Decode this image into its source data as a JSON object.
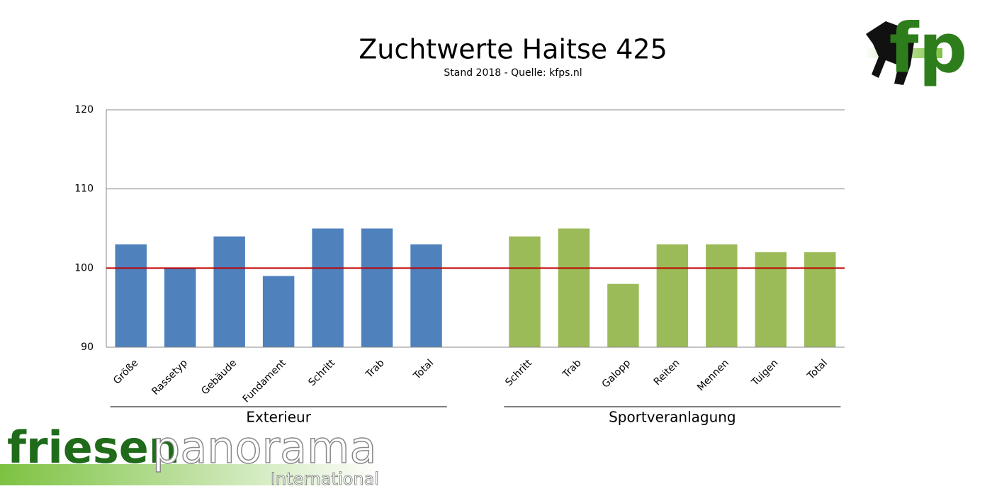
{
  "chart_data": {
    "type": "bar",
    "title": "Zuchtwerte Haitse 425",
    "subtitle": "Stand 2018 - Quelle: kfps.nl",
    "categories": [
      "Größe",
      "Rassetyp",
      "Gebäude",
      "Fundament",
      "Schritt",
      "Trab",
      "Total",
      null,
      "Schritt",
      "Trab",
      "Galopp",
      "Reiten",
      "Mennen",
      "Tuigen",
      "Total"
    ],
    "series": [
      {
        "name": "Exterieur",
        "color": "#4f81bd",
        "values": [
          103,
          100,
          104,
          99,
          105,
          105,
          103,
          null,
          null,
          null,
          null,
          null,
          null,
          null,
          null
        ]
      },
      {
        "name": "Sportveranlagung",
        "color": "#9bbb59",
        "values": [
          null,
          null,
          null,
          null,
          null,
          null,
          null,
          null,
          104,
          105,
          98,
          103,
          103,
          102,
          102
        ]
      }
    ],
    "reference_line": {
      "value": 100,
      "color": "#c00000"
    },
    "ylim": [
      90,
      120
    ],
    "yticks": [
      90,
      100,
      110,
      120
    ],
    "grid": true
  },
  "branding": {
    "name_part1": "friesen",
    "name_part2": "panorama",
    "tagline": "International",
    "logo_letters": "fp"
  }
}
